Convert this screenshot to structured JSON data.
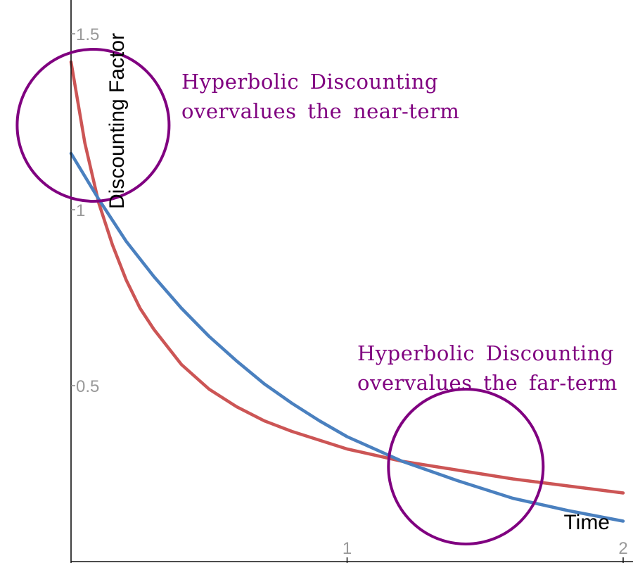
{
  "chart_data": {
    "type": "line",
    "xlabel": "Time",
    "ylabel": "Discounting Factor",
    "xlim": [
      0,
      2
    ],
    "ylim": [
      0,
      1.6
    ],
    "x_ticks": [
      {
        "value": 1,
        "label": "1"
      },
      {
        "value": 2,
        "label": "2"
      }
    ],
    "y_ticks": [
      {
        "value": 0.5,
        "label": "0.5"
      },
      {
        "value": 1,
        "label": "1"
      },
      {
        "value": 1.5,
        "label": "1.5"
      }
    ],
    "grid": false,
    "legend": "none",
    "series": [
      {
        "color": "#cc5555",
        "x": [
          0,
          0.05,
          0.1,
          0.15,
          0.2,
          0.25,
          0.3,
          0.4,
          0.5,
          0.6,
          0.7,
          0.8,
          1.0,
          1.2,
          1.4,
          1.6,
          1.8,
          2.0
        ],
        "y": [
          1.42,
          1.19,
          1.02,
          0.9,
          0.8,
          0.72,
          0.66,
          0.56,
          0.49,
          0.44,
          0.4,
          0.37,
          0.32,
          0.285,
          0.26,
          0.235,
          0.215,
          0.195
        ]
      },
      {
        "color": "#4a80bf",
        "x": [
          0,
          0.1,
          0.2,
          0.3,
          0.4,
          0.5,
          0.6,
          0.7,
          0.8,
          0.9,
          1.0,
          1.2,
          1.4,
          1.6,
          1.8,
          2.0
        ],
        "y": [
          1.16,
          1.03,
          0.91,
          0.81,
          0.72,
          0.64,
          0.57,
          0.505,
          0.45,
          0.4,
          0.355,
          0.285,
          0.23,
          0.18,
          0.145,
          0.115
        ]
      }
    ],
    "annotations": [
      {
        "lines": [
          "Hyperbolic Discounting",
          "overvalues the near-term"
        ],
        "color": "#800080",
        "circle_center": [
          0.08,
          1.24
        ]
      },
      {
        "lines": [
          "Hyperbolic Discounting",
          "overvalues the far-term"
        ],
        "color": "#800080",
        "circle_center": [
          1.43,
          0.27
        ]
      }
    ]
  }
}
